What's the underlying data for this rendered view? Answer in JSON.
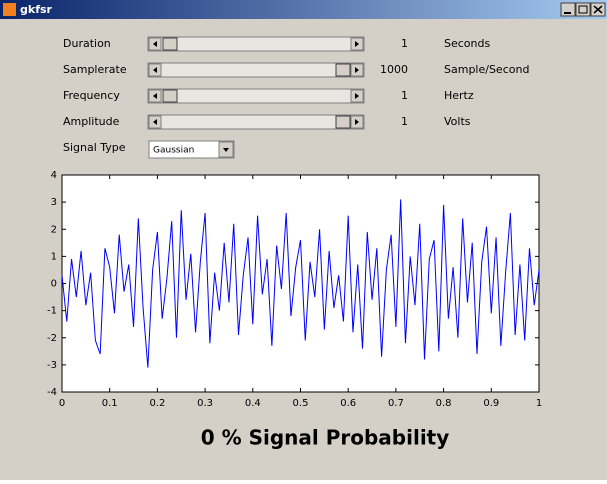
{
  "window": {
    "title": "gkfsr"
  },
  "controls": [
    {
      "label": "Duration",
      "value": 1,
      "unit": "Seconds"
    },
    {
      "label": "Samplerate",
      "value": 1000,
      "unit": "Sample/Second"
    },
    {
      "label": "Frequency",
      "value": 1,
      "unit": "Hertz"
    },
    {
      "label": "Amplitude",
      "value": 1,
      "unit": "Volts"
    }
  ],
  "signal_type": {
    "label": "Signal Type",
    "selected": "Gaussian"
  },
  "chart_data": {
    "type": "line",
    "x": [
      0,
      0.01,
      0.02,
      0.03,
      0.04,
      0.05,
      0.06,
      0.07,
      0.08,
      0.09,
      0.1,
      0.11,
      0.12,
      0.13,
      0.14,
      0.15,
      0.16,
      0.17,
      0.18,
      0.19,
      0.2,
      0.21,
      0.22,
      0.23,
      0.24,
      0.25,
      0.26,
      0.27,
      0.28,
      0.29,
      0.3,
      0.31,
      0.32,
      0.33,
      0.34,
      0.35,
      0.36,
      0.37,
      0.38,
      0.39,
      0.4,
      0.41,
      0.42,
      0.43,
      0.44,
      0.45,
      0.46,
      0.47,
      0.48,
      0.49,
      0.5,
      0.51,
      0.52,
      0.53,
      0.54,
      0.55,
      0.56,
      0.57,
      0.58,
      0.59,
      0.6,
      0.61,
      0.62,
      0.63,
      0.64,
      0.65,
      0.66,
      0.67,
      0.68,
      0.69,
      0.7,
      0.71,
      0.72,
      0.73,
      0.74,
      0.75,
      0.76,
      0.77,
      0.78,
      0.79,
      0.8,
      0.81,
      0.82,
      0.83,
      0.84,
      0.85,
      0.86,
      0.87,
      0.88,
      0.89,
      0.9,
      0.91,
      0.92,
      0.93,
      0.94,
      0.95,
      0.96,
      0.97,
      0.98,
      0.99,
      1
    ],
    "series": [
      {
        "color": "#0000ff",
        "values": [
          0.3,
          -1.4,
          0.9,
          -0.5,
          1.2,
          -0.8,
          0.4,
          -2.1,
          -2.6,
          1.3,
          0.6,
          -1.1,
          1.8,
          -0.3,
          0.7,
          -1.6,
          2.4,
          -0.9,
          -3.1,
          0.5,
          1.9,
          -1.3,
          0.2,
          2.3,
          -2.0,
          2.7,
          -0.6,
          1.1,
          -1.8,
          0.8,
          2.6,
          -2.2,
          0.4,
          -1.0,
          1.5,
          -0.7,
          2.2,
          -1.9,
          0.3,
          1.7,
          -1.5,
          2.5,
          -0.4,
          0.9,
          -2.3,
          1.4,
          -0.2,
          2.6,
          -1.2,
          0.6,
          1.6,
          -2.1,
          0.8,
          -0.5,
          2.0,
          -1.7,
          1.2,
          -0.9,
          0.3,
          -1.4,
          2.5,
          -1.8,
          0.7,
          -2.4,
          1.9,
          -0.6,
          1.3,
          -2.7,
          0.5,
          1.8,
          -1.6,
          3.1,
          -2.2,
          1.0,
          -0.8,
          2.2,
          -2.8,
          0.9,
          1.6,
          -2.5,
          2.9,
          -1.3,
          0.6,
          -2.0,
          2.4,
          -0.7,
          1.5,
          -2.6,
          0.8,
          2.1,
          -1.1,
          1.7,
          -2.3,
          0.4,
          2.6,
          -1.9,
          0.7,
          -2.1,
          1.3,
          -0.8,
          0.5
        ]
      }
    ],
    "xlim": [
      0,
      1
    ],
    "ylim": [
      -4,
      4
    ],
    "xticks": [
      0,
      0.1,
      0.2,
      0.3,
      0.4,
      0.5,
      0.6,
      0.7,
      0.8,
      0.9,
      1
    ],
    "yticks": [
      -4,
      -3,
      -2,
      -1,
      0,
      1,
      2,
      3,
      4
    ]
  },
  "status": "0 % Signal Probability"
}
